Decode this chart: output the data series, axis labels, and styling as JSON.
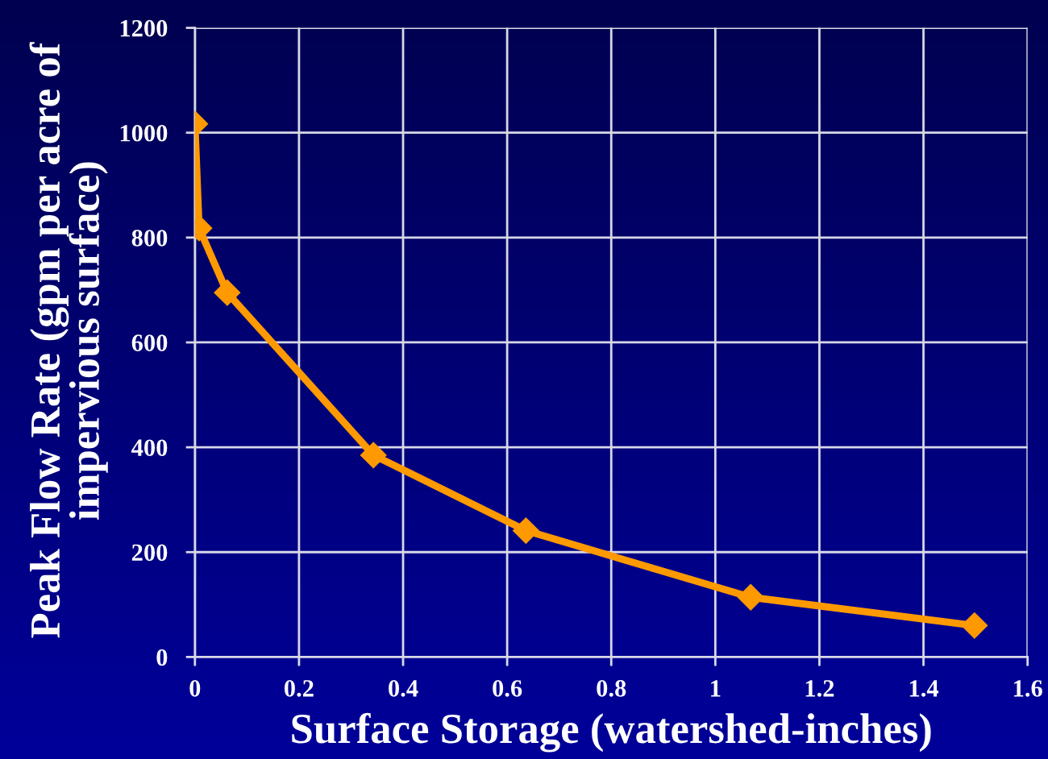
{
  "chart_data": {
    "type": "line",
    "xlabel": "Surface Storage (watershed-inches)",
    "ylabel": "Peak Flow Rate (gpm per acre of\nimpervious surface)",
    "x": [
      0.0,
      0.008,
      0.062,
      0.343,
      0.636,
      1.068,
      1.498
    ],
    "series": [
      {
        "color": "#ff9900",
        "values": [
          1017,
          818,
          695,
          385,
          241,
          114,
          60
        ]
      }
    ],
    "xlim": [
      0,
      1.6
    ],
    "xticks": [
      0,
      0.2,
      0.4,
      0.6,
      0.8,
      1,
      1.2,
      1.4,
      1.6
    ],
    "ylim": [
      0,
      1200
    ],
    "yticks": [
      0,
      200,
      400,
      600,
      800,
      1000,
      1200
    ],
    "grid": true,
    "marker": "diamond",
    "line_style": "solid"
  }
}
